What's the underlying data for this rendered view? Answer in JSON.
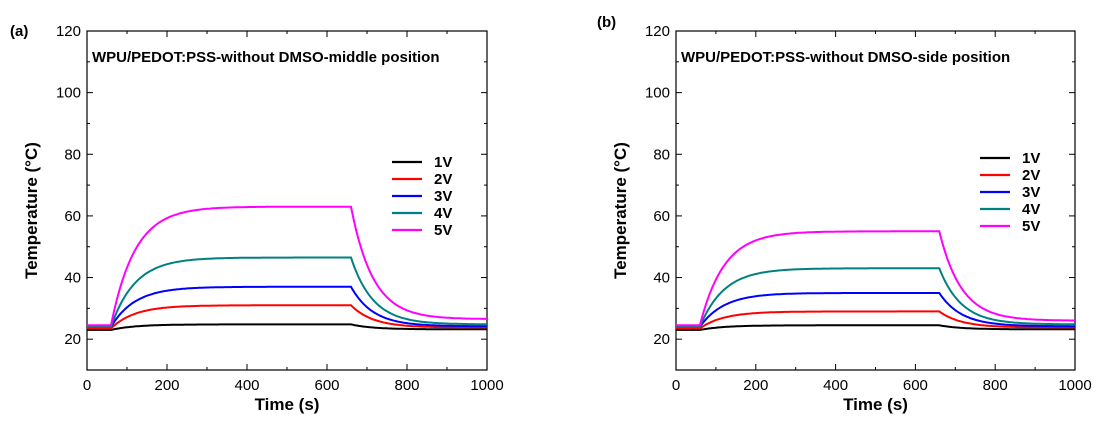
{
  "chart_data": [
    {
      "panel_label": "(a)",
      "type": "line",
      "title": "WPU/PEDOT:PSS-without DMSO-middle position",
      "xlabel": "Time (s)",
      "ylabel": "Temperature (°C)",
      "xlim": [
        0,
        1000
      ],
      "ylim": [
        10,
        120
      ],
      "x_ticks": [
        0,
        200,
        400,
        600,
        800,
        1000
      ],
      "y_ticks": [
        20,
        40,
        60,
        80,
        100,
        120
      ],
      "grid": false,
      "legend_position": "right-middle",
      "series": [
        {
          "name": "1V",
          "color": "#000000",
          "baseline": 23,
          "plateau": 24.8,
          "recovery_end": 23.2
        },
        {
          "name": "2V",
          "color": "#ff0000",
          "baseline": 23.5,
          "plateau": 31,
          "recovery_end": 23.8
        },
        {
          "name": "3V",
          "color": "#0000ff",
          "baseline": 24,
          "plateau": 37,
          "recovery_end": 24.2
        },
        {
          "name": "4V",
          "color": "#008080",
          "baseline": 24,
          "plateau": 46.5,
          "recovery_end": 24.8
        },
        {
          "name": "5V",
          "color": "#ff00ff",
          "baseline": 24.5,
          "plateau": 63,
          "recovery_end": 26.5
        }
      ],
      "voltage_on_s": 60,
      "voltage_off_s": 660
    },
    {
      "panel_label": "(b)",
      "type": "line",
      "title": "WPU/PEDOT:PSS-without DMSO-side position",
      "xlabel": "Time (s)",
      "ylabel": "Temperature (°C)",
      "xlim": [
        0,
        1000
      ],
      "ylim": [
        10,
        120
      ],
      "x_ticks": [
        0,
        200,
        400,
        600,
        800,
        1000
      ],
      "y_ticks": [
        20,
        40,
        60,
        80,
        100,
        120
      ],
      "grid": false,
      "legend_position": "right-middle",
      "series": [
        {
          "name": "1V",
          "color": "#000000",
          "baseline": 23,
          "plateau": 24.5,
          "recovery_end": 23.2
        },
        {
          "name": "2V",
          "color": "#ff0000",
          "baseline": 23.5,
          "plateau": 29,
          "recovery_end": 23.8
        },
        {
          "name": "3V",
          "color": "#0000ff",
          "baseline": 24,
          "plateau": 35,
          "recovery_end": 24.2
        },
        {
          "name": "4V",
          "color": "#008080",
          "baseline": 24,
          "plateau": 43,
          "recovery_end": 24.8
        },
        {
          "name": "5V",
          "color": "#ff00ff",
          "baseline": 24.5,
          "plateau": 55,
          "recovery_end": 26
        }
      ],
      "voltage_on_s": 60,
      "voltage_off_s": 660
    }
  ]
}
